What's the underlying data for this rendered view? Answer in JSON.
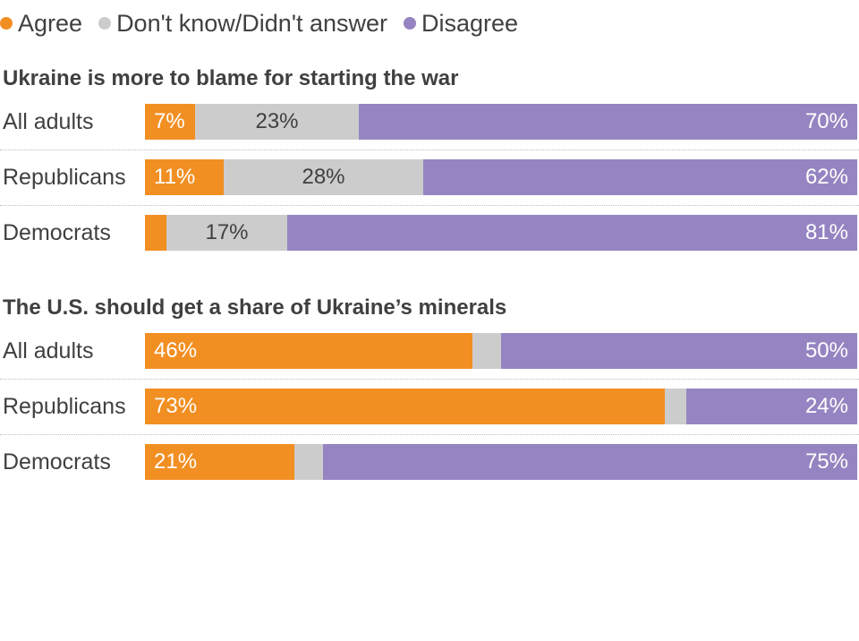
{
  "legend": [
    {
      "label": "Agree",
      "color": "#f28f22"
    },
    {
      "label": "Don't know/Didn't answer",
      "color": "#cccccc"
    },
    {
      "label": "Disagree",
      "color": "#9584c1"
    }
  ],
  "chart_data": [
    {
      "type": "bar",
      "orientation": "horizontal",
      "stacked": true,
      "title": "Ukraine is more to blame for starting the war",
      "categories": [
        "All adults",
        "Republicans",
        "Democrats"
      ],
      "series": [
        {
          "name": "Agree",
          "values": [
            7,
            11,
            3
          ],
          "labels": [
            "7%",
            "11%",
            ""
          ]
        },
        {
          "name": "Don't know/Didn't answer",
          "values": [
            23,
            28,
            17
          ],
          "labels": [
            "23%",
            "28%",
            "17%"
          ]
        },
        {
          "name": "Disagree",
          "values": [
            70,
            62,
            81
          ],
          "labels": [
            "70%",
            "62%",
            "81%"
          ]
        }
      ],
      "xlim": [
        0,
        100
      ],
      "legend_position": "top-left",
      "grid": false
    },
    {
      "type": "bar",
      "orientation": "horizontal",
      "stacked": true,
      "title": "The U.S. should get a share of Ukraine’s minerals",
      "categories": [
        "All adults",
        "Republicans",
        "Democrats"
      ],
      "series": [
        {
          "name": "Agree",
          "values": [
            46,
            73,
            21
          ],
          "labels": [
            "46%",
            "73%",
            "21%"
          ]
        },
        {
          "name": "Don't know/Didn't answer",
          "values": [
            4,
            3,
            4
          ],
          "labels": [
            "",
            "",
            ""
          ]
        },
        {
          "name": "Disagree",
          "values": [
            50,
            24,
            75
          ],
          "labels": [
            "50%",
            "24%",
            "75%"
          ]
        }
      ],
      "xlim": [
        0,
        100
      ],
      "legend_position": "top-left",
      "grid": false
    }
  ]
}
